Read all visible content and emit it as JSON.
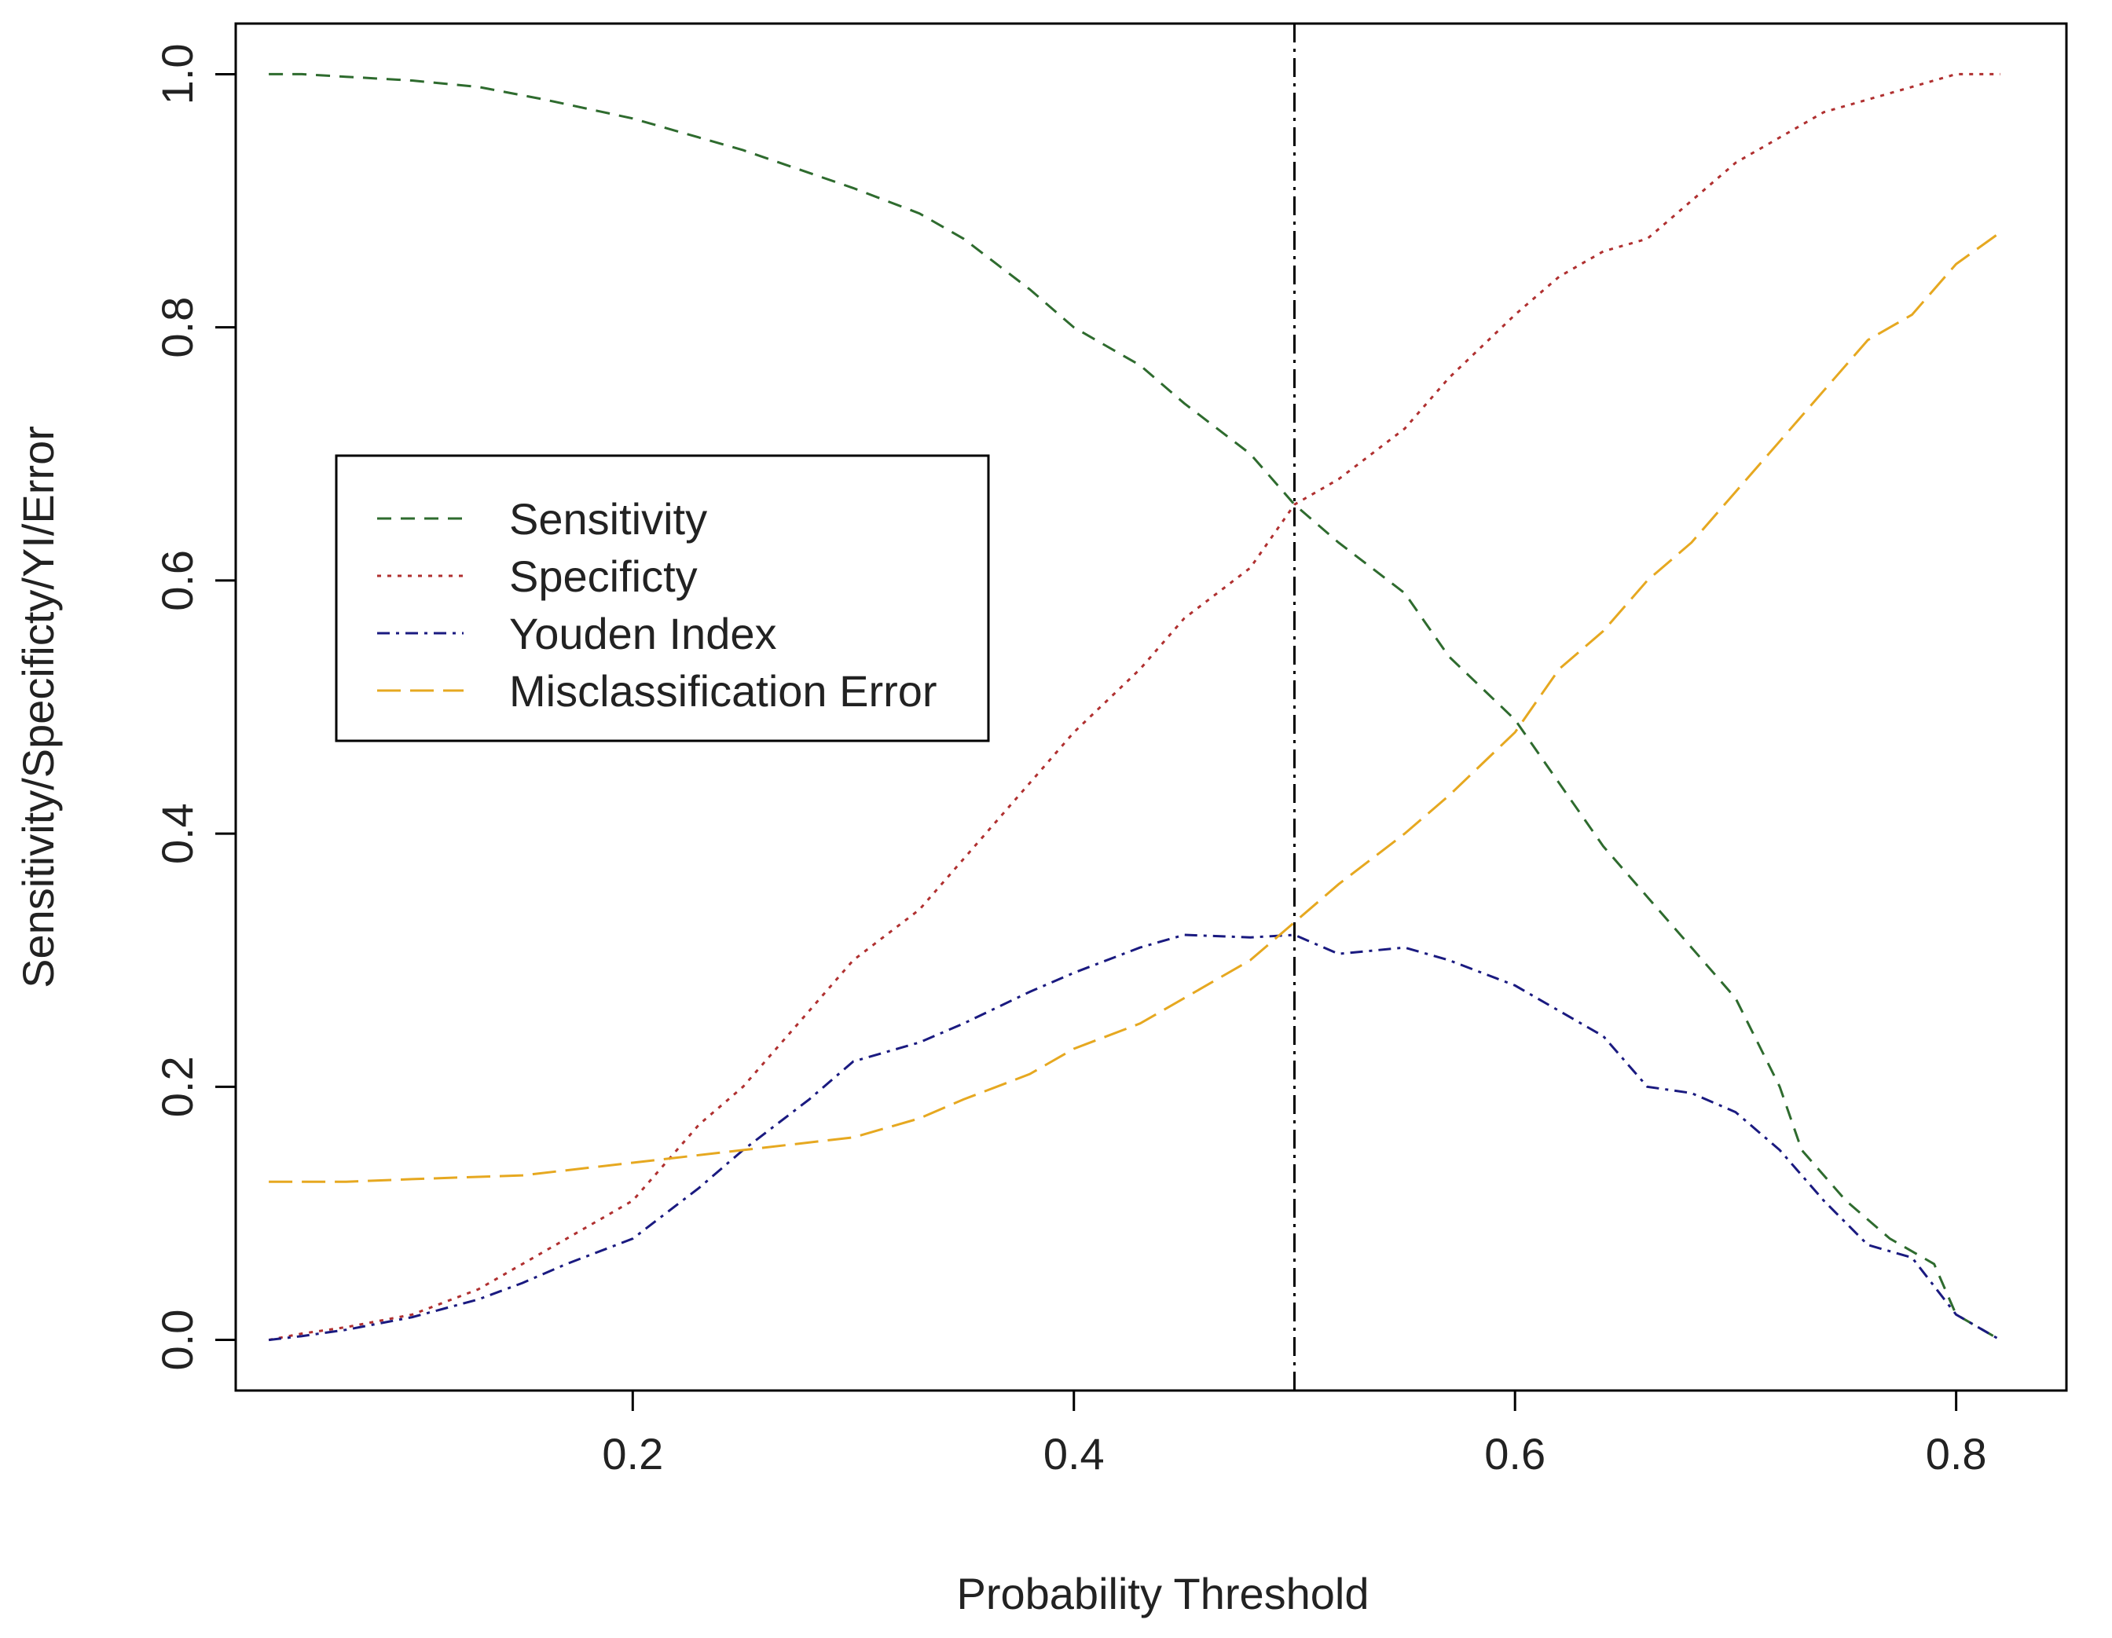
{
  "chart_data": {
    "type": "line",
    "title": "",
    "xlabel": "Probability Threshold",
    "ylabel": "Sensitivity/Specificty/YI/Error",
    "xlim": [
      0.02,
      0.85
    ],
    "ylim": [
      -0.04,
      1.04
    ],
    "x_ticks": [
      0.2,
      0.4,
      0.6,
      0.8
    ],
    "x_tick_labels": [
      "0.2",
      "0.4",
      "0.6",
      "0.8"
    ],
    "y_ticks": [
      0.0,
      0.2,
      0.4,
      0.6,
      0.8,
      1.0
    ],
    "y_tick_labels": [
      "0.0",
      "0.2",
      "0.4",
      "0.6",
      "0.8",
      "1.0"
    ],
    "threshold_line": {
      "x": 0.5,
      "color": "#000000",
      "style": "dashdot"
    },
    "legend_position": "left-middle",
    "series": [
      {
        "name": "Sensitivity",
        "color": "#2e6b2e",
        "style": "dashed",
        "x": [
          0.035,
          0.05,
          0.07,
          0.1,
          0.13,
          0.16,
          0.2,
          0.25,
          0.3,
          0.33,
          0.35,
          0.38,
          0.4,
          0.43,
          0.45,
          0.48,
          0.5,
          0.52,
          0.55,
          0.57,
          0.6,
          0.62,
          0.64,
          0.66,
          0.68,
          0.7,
          0.72,
          0.73,
          0.75,
          0.77,
          0.79,
          0.8,
          0.82
        ],
        "values": [
          1.0,
          1.0,
          0.998,
          0.995,
          0.99,
          0.98,
          0.965,
          0.94,
          0.91,
          0.89,
          0.87,
          0.83,
          0.8,
          0.77,
          0.74,
          0.7,
          0.66,
          0.63,
          0.59,
          0.54,
          0.49,
          0.44,
          0.39,
          0.35,
          0.31,
          0.27,
          0.2,
          0.15,
          0.11,
          0.08,
          0.06,
          0.02,
          0.0
        ]
      },
      {
        "name": "Specificty",
        "color": "#b03030",
        "style": "dotted",
        "x": [
          0.035,
          0.05,
          0.07,
          0.1,
          0.13,
          0.15,
          0.17,
          0.2,
          0.23,
          0.25,
          0.28,
          0.3,
          0.33,
          0.35,
          0.38,
          0.4,
          0.43,
          0.45,
          0.48,
          0.5,
          0.52,
          0.55,
          0.57,
          0.6,
          0.62,
          0.64,
          0.66,
          0.68,
          0.7,
          0.72,
          0.74,
          0.76,
          0.78,
          0.8,
          0.82
        ],
        "values": [
          0.0,
          0.005,
          0.01,
          0.02,
          0.04,
          0.06,
          0.08,
          0.11,
          0.17,
          0.2,
          0.26,
          0.3,
          0.34,
          0.38,
          0.44,
          0.48,
          0.53,
          0.57,
          0.61,
          0.66,
          0.68,
          0.72,
          0.76,
          0.81,
          0.84,
          0.86,
          0.87,
          0.9,
          0.93,
          0.95,
          0.97,
          0.98,
          0.99,
          1.0,
          1.0
        ]
      },
      {
        "name": "Youden Index",
        "color": "#1a1a80",
        "style": "dashdot",
        "x": [
          0.035,
          0.05,
          0.07,
          0.1,
          0.13,
          0.15,
          0.17,
          0.2,
          0.23,
          0.25,
          0.28,
          0.3,
          0.33,
          0.35,
          0.38,
          0.4,
          0.43,
          0.45,
          0.48,
          0.5,
          0.52,
          0.55,
          0.57,
          0.6,
          0.62,
          0.64,
          0.66,
          0.68,
          0.7,
          0.72,
          0.74,
          0.76,
          0.78,
          0.8,
          0.82
        ],
        "values": [
          0.0,
          0.003,
          0.008,
          0.018,
          0.032,
          0.045,
          0.06,
          0.08,
          0.12,
          0.15,
          0.19,
          0.22,
          0.235,
          0.25,
          0.275,
          0.29,
          0.31,
          0.32,
          0.318,
          0.32,
          0.305,
          0.31,
          0.3,
          0.28,
          0.26,
          0.24,
          0.2,
          0.195,
          0.18,
          0.15,
          0.11,
          0.075,
          0.065,
          0.02,
          0.0
        ]
      },
      {
        "name": "Misclassification Error",
        "color": "#e6a820",
        "style": "longdash",
        "x": [
          0.035,
          0.07,
          0.1,
          0.15,
          0.2,
          0.25,
          0.3,
          0.33,
          0.35,
          0.38,
          0.4,
          0.43,
          0.45,
          0.48,
          0.5,
          0.52,
          0.55,
          0.57,
          0.6,
          0.62,
          0.64,
          0.66,
          0.68,
          0.7,
          0.72,
          0.74,
          0.76,
          0.78,
          0.8,
          0.82
        ],
        "values": [
          0.125,
          0.125,
          0.127,
          0.13,
          0.14,
          0.15,
          0.16,
          0.175,
          0.19,
          0.21,
          0.23,
          0.25,
          0.27,
          0.3,
          0.33,
          0.36,
          0.4,
          0.43,
          0.48,
          0.53,
          0.56,
          0.6,
          0.63,
          0.67,
          0.71,
          0.75,
          0.79,
          0.81,
          0.85,
          0.875
        ]
      }
    ]
  }
}
